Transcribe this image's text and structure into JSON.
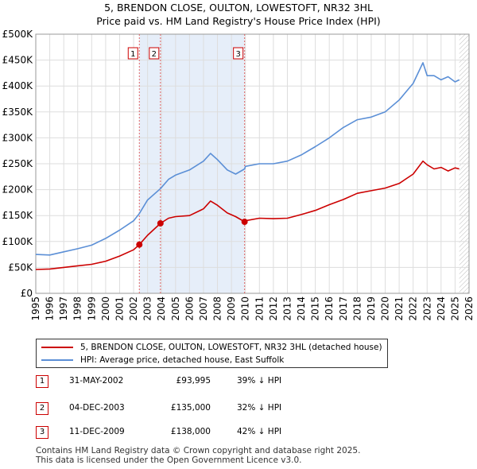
{
  "title": "5, BRENDON CLOSE, OULTON, LOWESTOFT, NR32 3HL",
  "subtitle": "Price paid vs. HM Land Registry's House Price Index (HPI)",
  "colors": {
    "red": "#cc0000",
    "blue": "#5b8fd6",
    "grid": "#dddddd",
    "plot_bg": "#ffffff",
    "shade": "#e6eef9"
  },
  "chart_data": {
    "type": "line",
    "title": "5, BRENDON CLOSE, OULTON, LOWESTOFT, NR32 3HL",
    "subtitle": "Price paid vs. HM Land Registry's House Price Index (HPI)",
    "xlim": [
      1995,
      2026
    ],
    "ylim": [
      0,
      500000
    ],
    "x_ticks": [
      "1995",
      "1996",
      "1997",
      "1998",
      "1999",
      "2000",
      "2001",
      "2002",
      "2003",
      "2004",
      "2005",
      "2006",
      "2007",
      "2008",
      "2009",
      "2010",
      "2011",
      "2012",
      "2013",
      "2014",
      "2015",
      "2016",
      "2017",
      "2018",
      "2019",
      "2020",
      "2021",
      "2022",
      "2023",
      "2024",
      "2025",
      "2026"
    ],
    "y_ticks": [
      {
        "value": 0,
        "label": "£0"
      },
      {
        "value": 50000,
        "label": "£50K"
      },
      {
        "value": 100000,
        "label": "£100K"
      },
      {
        "value": 150000,
        "label": "£150K"
      },
      {
        "value": 200000,
        "label": "£200K"
      },
      {
        "value": 250000,
        "label": "£250K"
      },
      {
        "value": 300000,
        "label": "£300K"
      },
      {
        "value": 350000,
        "label": "£350K"
      },
      {
        "value": 400000,
        "label": "£400K"
      },
      {
        "value": 450000,
        "label": "£450K"
      },
      {
        "value": 500000,
        "label": "£500K"
      }
    ],
    "data_end": 2025.3,
    "series": [
      {
        "name": "5, BRENDON CLOSE, OULTON, LOWESTOFT, NR32 3HL (detached house)",
        "color": "#cc0000",
        "x": [
          1995,
          1996,
          1997,
          1998,
          1999,
          2000,
          2001,
          2002,
          2002.41,
          2003,
          2003.92,
          2004.5,
          2005,
          2006,
          2007,
          2007.5,
          2008,
          2008.7,
          2009.3,
          2009.94,
          2010,
          2011,
          2012,
          2013,
          2014,
          2015,
          2016,
          2017,
          2018,
          2019,
          2020,
          2021,
          2022,
          2022.7,
          2023,
          2023.5,
          2024,
          2024.5,
          2025,
          2025.3
        ],
        "y": [
          46000,
          47000,
          50000,
          53000,
          56000,
          62000,
          72000,
          84000,
          93995,
          112000,
          135000,
          145000,
          148000,
          150000,
          163000,
          178000,
          170000,
          155000,
          148000,
          138000,
          140000,
          145000,
          144000,
          145000,
          152000,
          160000,
          171000,
          181000,
          193000,
          198000,
          203000,
          212000,
          230000,
          255000,
          248000,
          240000,
          243000,
          236000,
          242000,
          240000
        ]
      },
      {
        "name": "HPI: Average price, detached house, East Suffolk",
        "color": "#5b8fd6",
        "x": [
          1995,
          1996,
          1997,
          1998,
          1999,
          2000,
          2001,
          2002,
          2002.41,
          2003,
          2003.92,
          2004.5,
          2005,
          2006,
          2007,
          2007.5,
          2008,
          2008.7,
          2009.3,
          2009.94,
          2010,
          2011,
          2012,
          2013,
          2014,
          2015,
          2016,
          2017,
          2018,
          2019,
          2020,
          2021,
          2022,
          2022.7,
          2023,
          2023.5,
          2024,
          2024.5,
          2025,
          2025.3
        ],
        "y": [
          75000,
          74000,
          80000,
          86000,
          93000,
          106000,
          122000,
          140000,
          154000,
          180000,
          202000,
          220000,
          228000,
          238000,
          255000,
          270000,
          258000,
          238000,
          230000,
          240000,
          245000,
          250000,
          250000,
          255000,
          267000,
          283000,
          300000,
          320000,
          335000,
          340000,
          350000,
          373000,
          405000,
          445000,
          420000,
          420000,
          412000,
          418000,
          408000,
          412000
        ]
      }
    ],
    "annotations": [
      {
        "label": "1",
        "x": 2002.41,
        "y": 93995
      },
      {
        "label": "2",
        "x": 2003.92,
        "y": 135000
      },
      {
        "label": "3",
        "x": 2009.94,
        "y": 138000
      }
    ]
  },
  "legend": [
    {
      "label": "5, BRENDON CLOSE, OULTON, LOWESTOFT, NR32 3HL (detached house)",
      "color": "#cc0000"
    },
    {
      "label": "HPI: Average price, detached house, East Suffolk",
      "color": "#5b8fd6"
    }
  ],
  "sales": [
    {
      "num": "1",
      "date": "31-MAY-2002",
      "price": "£93,995",
      "hpi": "39% ↓ HPI"
    },
    {
      "num": "2",
      "date": "04-DEC-2003",
      "price": "£135,000",
      "hpi": "32% ↓ HPI"
    },
    {
      "num": "3",
      "date": "11-DEC-2009",
      "price": "£138,000",
      "hpi": "42% ↓ HPI"
    }
  ],
  "footer": {
    "line1": "Contains HM Land Registry data © Crown copyright and database right 2025.",
    "line2": "This data is licensed under the Open Government Licence v3.0."
  }
}
